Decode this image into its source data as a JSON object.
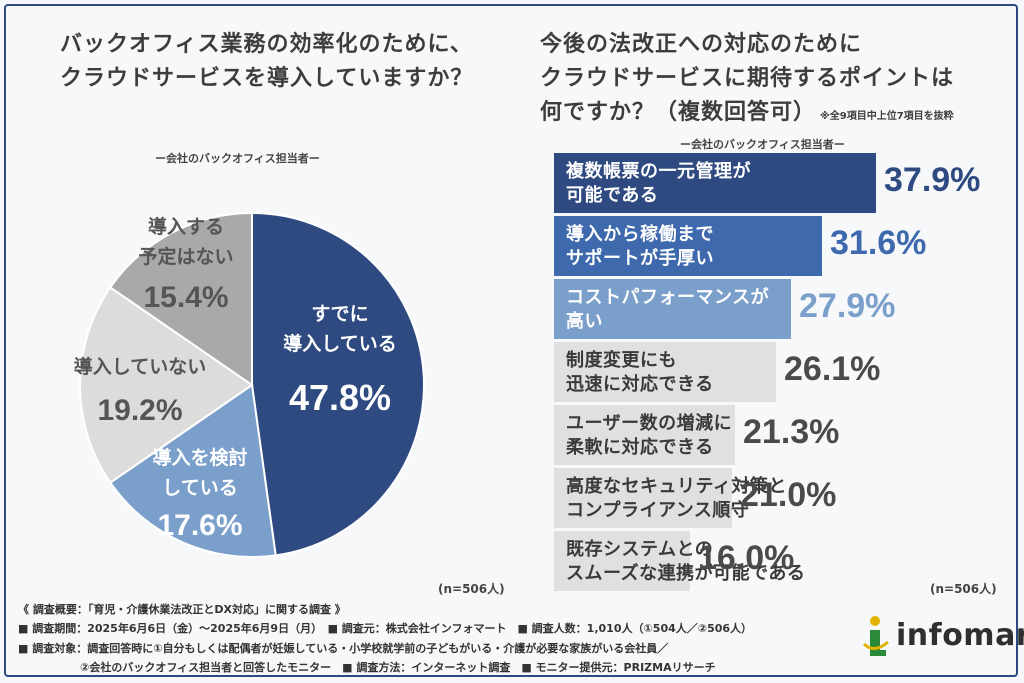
{
  "left": {
    "title_line1": "バックオフィス業務の効率化のために、",
    "title_line2": "クラウドサービスを導入していますか？",
    "subtitle": "ー会社のバックオフィス担当者ー",
    "n": "(n=506人)"
  },
  "right": {
    "title_line1": "今後の法改正への対応のために",
    "title_line2": "クラウドサービスに期待するポイントは",
    "title_line3": "何ですか？（複数回答可）",
    "note": "※全9項目中上位7項目を抜粋",
    "subtitle": "ー会社のバックオフィス担当者ー",
    "n": "(n=506人)"
  },
  "chart_data": [
    {
      "type": "pie",
      "slices": [
        {
          "label": "すでに\n導入している",
          "value": 47.8,
          "value_text": "47.8%",
          "color": "#2e4a80"
        },
        {
          "label": "導入を検討\nしている",
          "value": 17.6,
          "value_text": "17.6%",
          "color": "#7a9fca"
        },
        {
          "label": "導入していない",
          "value": 19.2,
          "value_text": "19.2%",
          "color": "#dcdcdc"
        },
        {
          "label": "導入する\n予定はない",
          "value": 15.4,
          "value_text": "15.4%",
          "color": "#a9a9a9"
        }
      ]
    },
    {
      "type": "bar",
      "orientation": "horizontal",
      "categories": [
        "複数帳票の一元管理が\n可能である",
        "導入から稼働まで\nサポートが手厚い",
        "コストパフォーマンスが\n高い",
        "制度変更にも\n迅速に対応できる",
        "ユーザー数の増減に\n柔軟に対応できる",
        "高度なセキュリティ対策と\nコンプライアンス順守",
        "既存システムとの\nスムーズな連携が可能である"
      ],
      "values": [
        37.9,
        31.6,
        27.9,
        26.1,
        21.3,
        21.0,
        16.0
      ],
      "value_texts": [
        "37.9%",
        "31.6%",
        "27.9%",
        "26.1%",
        "21.3%",
        "21.0%",
        "16.0%"
      ],
      "bar_colors": [
        "#2e4a80",
        "#3e6aad",
        "#7a9fca",
        "#e0e0e0",
        "#e0e0e0",
        "#e0e0e0",
        "#e0e0e0"
      ],
      "label_colors": [
        "#ffffff",
        "#ffffff",
        "#ffffff",
        "#3a3a3a",
        "#3a3a3a",
        "#3a3a3a",
        "#3a3a3a"
      ],
      "value_colors": [
        "#2e4a80",
        "#3e6aad",
        "#7a9fca",
        "#4a4a4a",
        "#4a4a4a",
        "#4a4a4a",
        "#4a4a4a"
      ]
    }
  ],
  "footer": {
    "line0": "《 調査概要：「育児・介護休業法改正とDX対応」に関する調査 》",
    "line1": "■ 調査期間：2025年6月6日（金）〜2025年6月9日（月）　■ 調査元：株式会社インフォマート　■ 調査人数：1,010人（①504人／②506人）",
    "line2": "■ 調査対象：調査回答時に①自分もしくは配偶者が妊娠している・小学校就学前の子どもがいる・介護が必要な家族がいる会社員／",
    "line3": "②会社のバックオフィス担当者と回答したモニター　■ 調査方法：インターネット調査　■ モニター提供元：PRIZMAリサーチ"
  },
  "logo": {
    "text": "infomart",
    "icon": "infomart-logo-icon",
    "colors": [
      "#2a8a3a",
      "#e2b400"
    ]
  }
}
